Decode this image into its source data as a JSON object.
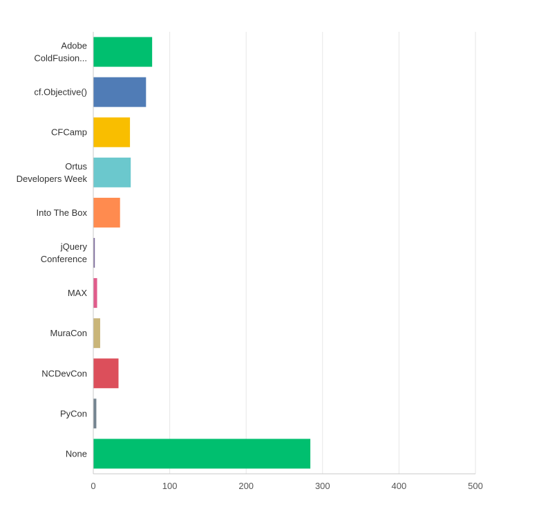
{
  "chart_data": {
    "type": "bar",
    "orientation": "horizontal",
    "categories": [
      [
        "Adobe",
        "ColdFusion..."
      ],
      [
        "cf.Objective()"
      ],
      [
        "CFCamp"
      ],
      [
        "Ortus",
        "Developers Week"
      ],
      [
        "Into The Box"
      ],
      [
        "jQuery",
        "Conference"
      ],
      [
        "MAX"
      ],
      [
        "MuraCon"
      ],
      [
        "NCDevCon"
      ],
      [
        "PyCon"
      ],
      [
        "None"
      ]
    ],
    "values": [
      77,
      69,
      48,
      49,
      35,
      2,
      5,
      9,
      33,
      4,
      284
    ],
    "colors": [
      "#00bf6f",
      "#507cb6",
      "#f9be00",
      "#6bc8cd",
      "#ff8b4f",
      "#7f6e9e",
      "#e05c8b",
      "#c9b579",
      "#dc4f5b",
      "#748490",
      "#00bf6f"
    ],
    "xlim": [
      0,
      500
    ],
    "xticks": [
      0,
      100,
      200,
      300,
      400,
      500
    ],
    "grid": true,
    "title": "",
    "xlabel": "",
    "ylabel": ""
  }
}
